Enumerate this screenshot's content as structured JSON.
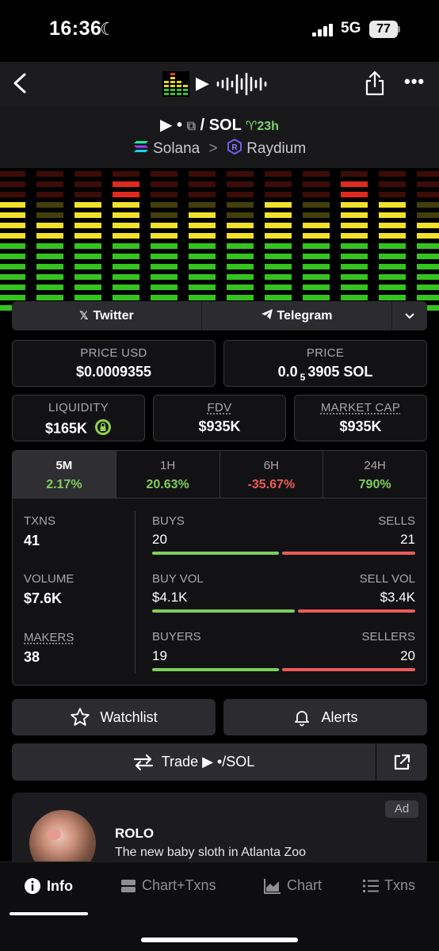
{
  "status_bar": {
    "time": "16:36",
    "network": "5G",
    "battery": "77"
  },
  "pair": {
    "base_symbol": "▶ •",
    "separator": "/",
    "quote": "SOL",
    "age": "23h",
    "chain": "Solana",
    "chevron": ">",
    "dex": "Raydium"
  },
  "social": {
    "twitter": "Twitter",
    "telegram": "Telegram"
  },
  "price_usd": {
    "label": "PRICE USD",
    "value": "$0.0009355"
  },
  "price": {
    "label": "PRICE",
    "value_prefix": "0.0",
    "subscript": "5",
    "value_suffix": "3905 SOL"
  },
  "liquidity": {
    "label": "LIQUIDITY",
    "value": "$165K"
  },
  "fdv": {
    "label": "FDV",
    "value": "$935K"
  },
  "market_cap": {
    "label": "MARKET CAP",
    "value": "$935K"
  },
  "tabs": [
    {
      "label": "5M",
      "value": "2.17%",
      "trend": "up"
    },
    {
      "label": "1H",
      "value": "20.63%",
      "trend": "up"
    },
    {
      "label": "6H",
      "value": "-35.67%",
      "trend": "down"
    },
    {
      "label": "24H",
      "value": "790%",
      "trend": "up"
    }
  ],
  "stats": {
    "txns": {
      "label": "TXNS",
      "value": "41"
    },
    "volume": {
      "label": "VOLUME",
      "value": "$7.6K"
    },
    "makers": {
      "label": "MAKERS",
      "value": "38"
    },
    "buys": {
      "label": "BUYS",
      "value": "20"
    },
    "sells": {
      "label": "SELLS",
      "value": "21"
    },
    "buy_vol": {
      "label": "BUY VOL",
      "value": "$4.1K"
    },
    "sell_vol": {
      "label": "SELL VOL",
      "value": "$3.4K"
    },
    "buyers": {
      "label": "BUYERS",
      "value": "19"
    },
    "sellers": {
      "label": "SELLERS",
      "value": "20"
    },
    "ratios": {
      "buys": 0.488,
      "buy_vol": 0.547,
      "buyers": 0.487
    }
  },
  "actions": {
    "watchlist": "Watchlist",
    "alerts": "Alerts",
    "trade": "Trade ▶ •/SOL"
  },
  "ad": {
    "badge": "Ad",
    "title": "ROLO",
    "text": "The new baby sloth in Atlanta Zoo"
  },
  "bottom_nav": {
    "info": "Info",
    "chart_txns": "Chart+Txns",
    "chart": "Chart",
    "txns": "Txns"
  },
  "colors": {
    "green": "#7fce5a",
    "red": "#ef5a5a",
    "accent_age": "#7bd66d"
  }
}
